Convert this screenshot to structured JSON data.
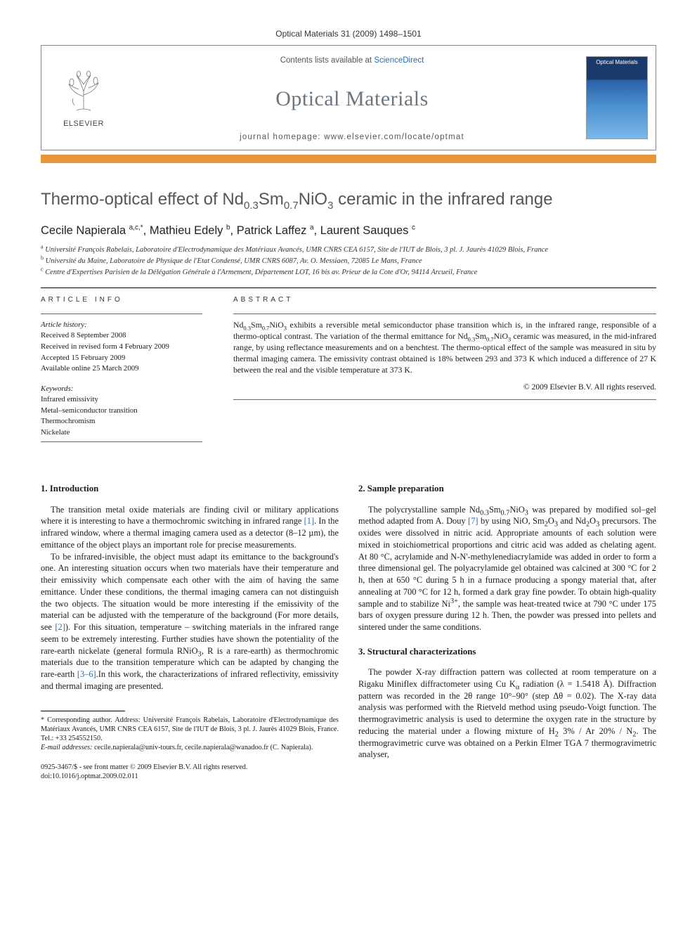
{
  "citation": "Optical Materials 31 (2009) 1498–1501",
  "header": {
    "publisher_label": "ELSEVIER",
    "avail_prefix": "Contents lists available at ",
    "avail_link": "ScienceDirect",
    "journal": "Optical Materials",
    "homepage_prefix": "journal homepage: ",
    "homepage_url": "www.elsevier.com/locate/optmat",
    "cover_label": "Optical Materials"
  },
  "title_html": "Thermo-optical effect of Nd<sub>0.3</sub>Sm<sub>0.7</sub>NiO<sub>3</sub> ceramic in the infrared range",
  "authors_html": "Cecile Napierala <sup>a,c,*</sup>, Mathieu Edely <sup>b</sup>, Patrick Laffez <sup>a</sup>, Laurent Sauques <sup>c</sup>",
  "affiliations": [
    "<sup>a</sup> Université François Rabelais, Laboratoire d'Electrodynamique des Matériaux Avancés, UMR CNRS CEA 6157, Site de l'IUT de Blois, 3 pl. J. Jaurès 41029 Blois, France",
    "<sup>b</sup> Université du Maine, Laboratoire de Physique de l'Etat Condensé, UMR CNRS 6087, Av. O. Messiaen, 72085 Le Mans, France",
    "<sup>c</sup> Centre d'Expertises Parisien de la Délégation Générale à l'Armement, Département LOT, 16 bis av. Prieur de la Cote d'Or, 94114 Arcueil, France"
  ],
  "labels": {
    "article_info": "ARTICLE INFO",
    "abstract": "ABSTRACT"
  },
  "history": {
    "head": "Article history:",
    "lines": [
      "Received 8 September 2008",
      "Received in revised form 4 February 2009",
      "Accepted 15 February 2009",
      "Available online 25 March 2009"
    ]
  },
  "keywords": {
    "head": "Keywords:",
    "items": [
      "Infrared emissivity",
      "Metal–semiconductor transition",
      "Thermochromism",
      "Nickelate"
    ]
  },
  "abstract_html": "Nd<sub>0.3</sub>Sm<sub>0.7</sub>NiO<sub>3</sub> exhibits a reversible metal semiconductor phase transition which is, in the infrared range, responsible of a thermo-optical contrast. The variation of the thermal emittance for Nd<sub>0.3</sub>Sm<sub>0.7</sub>NiO<sub>3</sub> ceramic was measured, in the mid-infrared range, by using reflectance measurements and on a benchtest. The thermo-optical effect of the sample was measured in situ by thermal imaging camera. The emissivity contrast obtained is 18% between 293 and 373 K which induced a difference of 27 K between the real and the visible temperature at 373 K.",
  "copyright": "© 2009 Elsevier B.V. All rights reserved.",
  "sections": {
    "left": {
      "head": "1. Introduction",
      "p1_html": "The transition metal oxide materials are finding civil or military applications where it is interesting to have a thermochromic switching in infrared range <a class='ref-link' href='#'>[1]</a>. In the infrared window, where a thermal imaging camera used as a detector (8–12 µm), the emittance of the object plays an important role for precise measurements.",
      "p2_html": "To be infrared-invisible, the object must adapt its emittance to the background's one. An interesting situation occurs when two materials have their temperature and their emissivity which compensate each other with the aim of having the same emittance. Under these conditions, the thermal imaging camera can not distinguish the two objects. The situation would be more interesting if the emissivity of the material can be adjusted with the temperature of the background (For more details, see <a class='ref-link' href='#'>[2]</a>). For this situation, temperature – switching materials in the infrared range seem to be extremely interesting. Further studies have shown the potentiality of the rare-earth nickelate (general formula RNiO<sub>3</sub>, R is a rare-earth) as thermochromic materials due to the transition temperature which can be adapted by changing the rare-earth <a class='ref-link' href='#'>[3–6]</a>.In this work, the characterizations of infrared reflectivity, emissivity and thermal imaging are presented."
    },
    "right_a": {
      "head": "2. Sample preparation",
      "p1_html": "The polycrystalline sample Nd<sub>0.3</sub>Sm<sub>0.7</sub>NiO<sub>3</sub> was prepared by modified sol–gel method adapted from A. Douy <a class='ref-link' href='#'>[7]</a> by using NiO, Sm<sub>2</sub>O<sub>3</sub> and Nd<sub>2</sub>O<sub>3</sub> precursors. The oxides were dissolved in nitric acid. Appropriate amounts of each solution were mixed in stoichiometrical proportions and citric acid was added as chelating agent. At 80 °C, acrylamide and N-N'-methylenediacrylamide was added in order to form a three dimensional gel. The polyacrylamide gel obtained was calcined at 300 °C for 2 h, then at 650 °C during 5 h in a furnace producing a spongy material that, after annealing at 700 °C for 12 h, formed a dark gray fine powder. To obtain high-quality sample and to stabilize Ni<sup>3+</sup>, the sample was heat-treated twice at 790 °C under 175 bars of oxygen pressure during 12 h. Then, the powder was pressed into pellets and sintered under the same conditions."
    },
    "right_b": {
      "head": "3. Structural characterizations",
      "p1_html": "The powder X-ray diffraction pattern was collected at room temperature on a Rigaku Miniflex diffractometer using Cu K<sub>α</sub> radiation (λ = 1.5418 Å). Diffraction pattern was recorded in the 2θ range 10°–90° (step Δθ = 0.02). The X-ray data analysis was performed with the Rietveld method using pseudo-Voigt function. The thermogravimetric analysis is used to determine the oxygen rate in the structure by reducing the material under a flowing mixture of H<sub>2</sub> 3% / Ar 20% / N<sub>2</sub>. The thermogravimetric curve was obtained on a Perkin Elmer TGA 7 thermogravimetric analyser,"
    }
  },
  "footnote": {
    "corr_html": "* Corresponding author. Address: Université François Rabelais, Laboratoire d'Electrodynamique des Matériaux Avancés, UMR CNRS CEA 6157, Site de l'IUT de Blois, 3 pl. J. Jaurès 41029 Blois, France. Tel.: +33 254552150.",
    "email_label": "E-mail addresses:",
    "emails_html": " cecile.napierala@univ-tours.fr, cecile.napierala@wanadoo.fr (C. Napierala)."
  },
  "doi": {
    "line1": "0925-3467/$ - see front matter © 2009 Elsevier B.V. All rights reserved.",
    "line2": "doi:10.1016/j.optmat.2009.02.011"
  },
  "colors": {
    "orange_bar": "#e8963a",
    "journal_gray": "#6b7680",
    "title_gray": "#565656",
    "link_blue": "#2a6bb2"
  }
}
